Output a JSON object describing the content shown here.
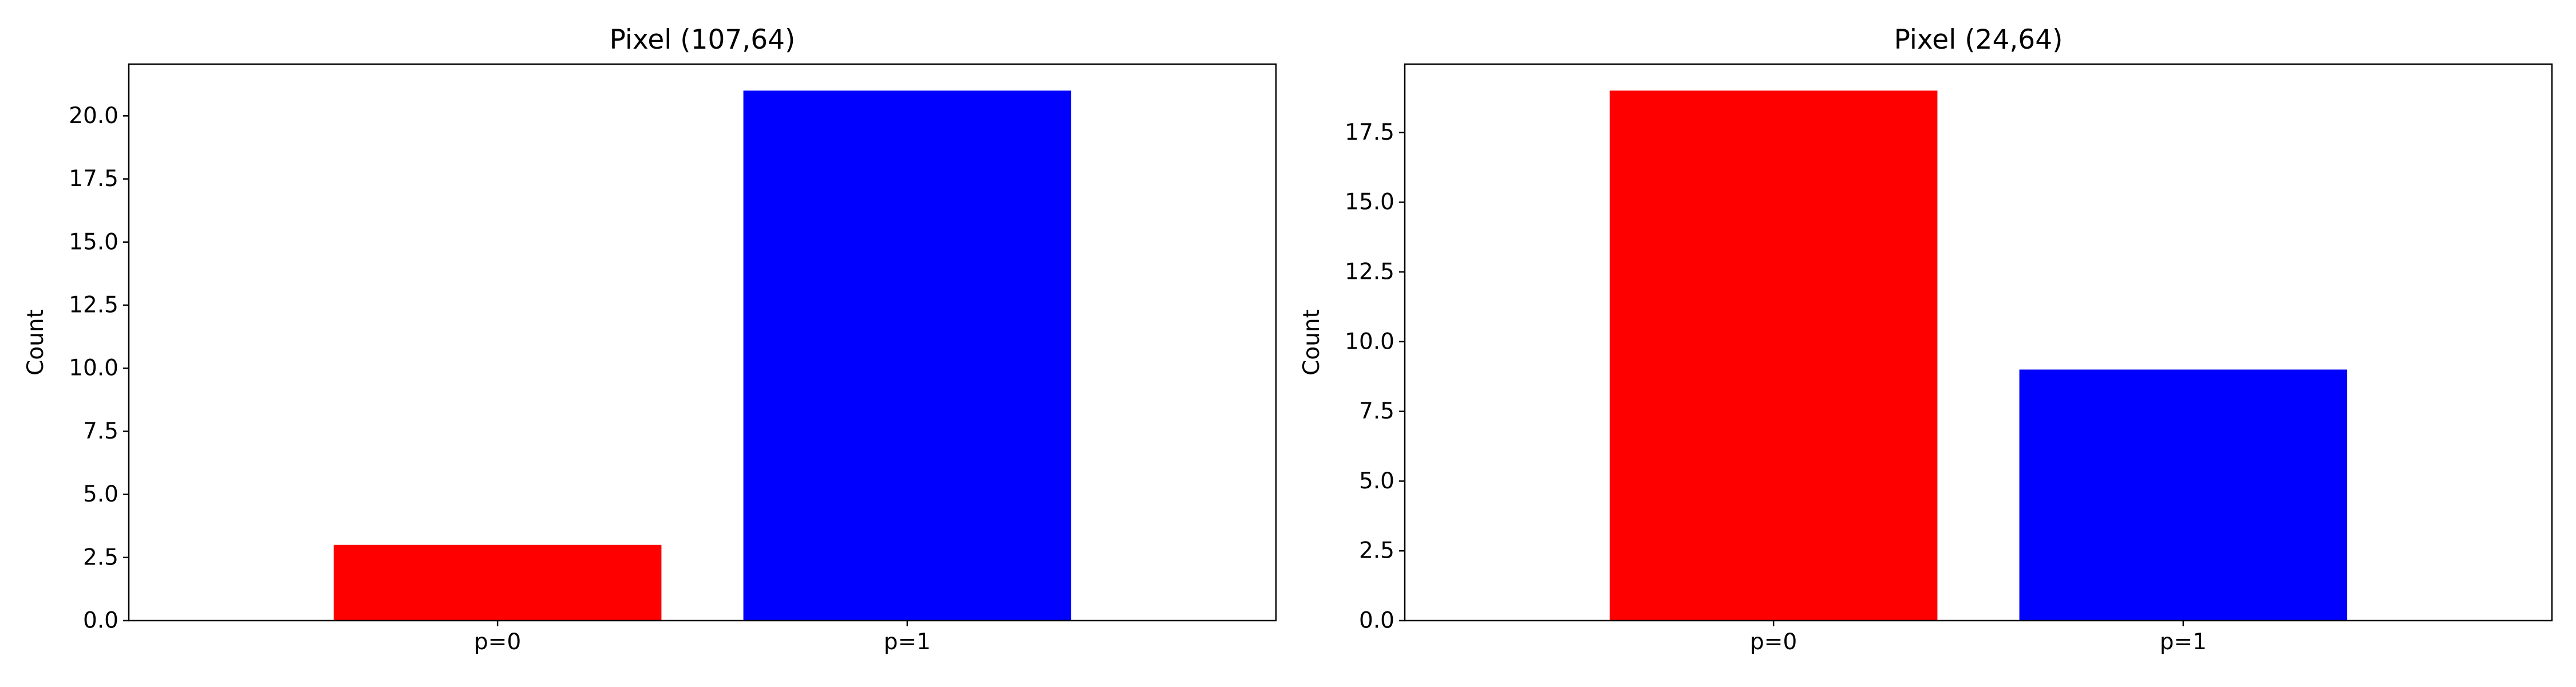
{
  "chart_data": [
    {
      "type": "bar",
      "title": "Pixel (107,64)",
      "xlabel": "",
      "ylabel": "Count",
      "categories": [
        "p=0",
        "p=1"
      ],
      "values": [
        3,
        21
      ],
      "colors": [
        "#ff0000",
        "#0000ff"
      ],
      "ylim": [
        0,
        22.05
      ],
      "yticks": [
        0,
        2.5,
        5,
        7.5,
        10,
        12.5,
        15,
        17.5,
        20
      ],
      "ytick_labels": [
        "0.0",
        "2.5",
        "5.0",
        "7.5",
        "10.0",
        "12.5",
        "15.0",
        "17.5",
        "20.0"
      ],
      "grid": false
    },
    {
      "type": "bar",
      "title": "Pixel (24,64)",
      "xlabel": "",
      "ylabel": "Count",
      "categories": [
        "p=0",
        "p=1"
      ],
      "values": [
        19,
        9
      ],
      "colors": [
        "#ff0000",
        "#0000ff"
      ],
      "ylim": [
        0,
        19.95
      ],
      "yticks": [
        0,
        2.5,
        5,
        7.5,
        10,
        12.5,
        15,
        17.5
      ],
      "ytick_labels": [
        "0.0",
        "2.5",
        "5.0",
        "7.5",
        "10.0",
        "12.5",
        "15.0",
        "17.5"
      ],
      "grid": false
    }
  ]
}
